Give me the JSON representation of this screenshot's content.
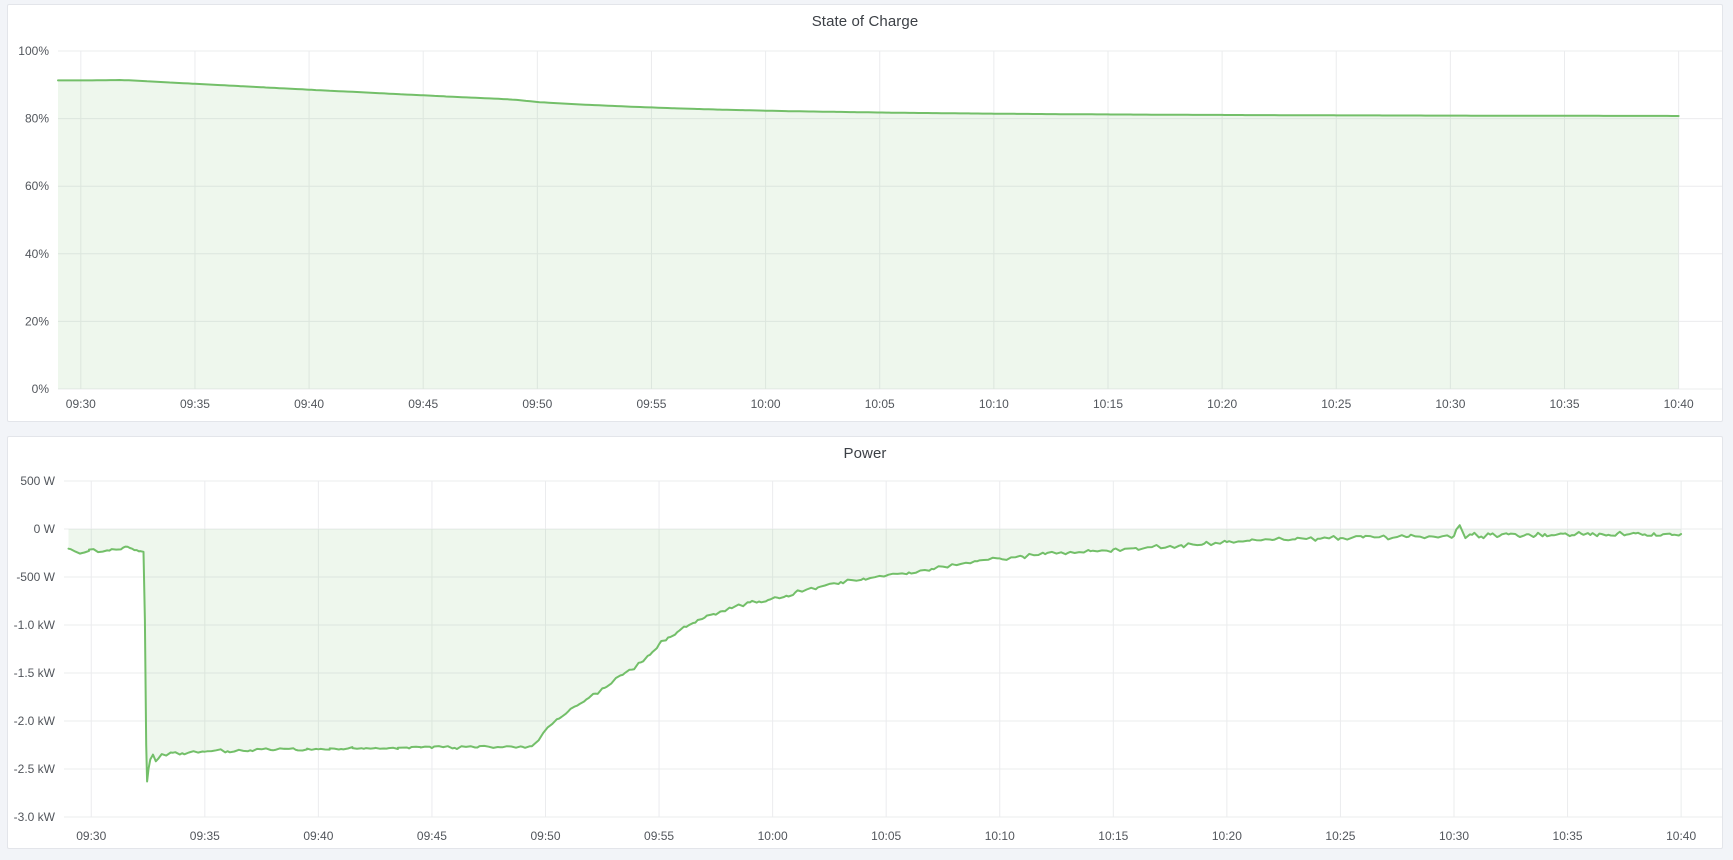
{
  "page": {
    "background": "#f2f4f8"
  },
  "panels": [
    {
      "title": "State of Charge"
    },
    {
      "title": "Power"
    }
  ],
  "chart_data": [
    {
      "type": "area",
      "title": "State of Charge",
      "xlabel": "",
      "ylabel": "",
      "legend": "none",
      "grid": true,
      "xlim_minutes": [
        -1,
        71.9
      ],
      "x_axis": {
        "tick_labels": [
          "09:30",
          "09:35",
          "09:40",
          "09:45",
          "09:50",
          "09:55",
          "10:00",
          "10:05",
          "10:10",
          "10:15",
          "10:20",
          "10:25",
          "10:30",
          "10:35",
          "10:40"
        ],
        "tick_minutes": [
          0,
          5,
          10,
          15,
          20,
          25,
          30,
          35,
          40,
          45,
          50,
          55,
          60,
          65,
          70
        ]
      },
      "y_axis": {
        "tick_labels": [
          "100%",
          "80%",
          "60%",
          "40%",
          "20%",
          "0%"
        ],
        "tick_values": [
          100,
          80,
          60,
          40,
          20,
          0
        ],
        "ylim": [
          0,
          100
        ],
        "unit": "%"
      },
      "noise_zones": [],
      "series": [
        {
          "name": "State of Charge",
          "color": "#73bf69",
          "fill": "rgba(115,191,105,0.12)",
          "points": [
            [
              -1,
              91.3
            ],
            [
              0,
              91.3
            ],
            [
              0.7,
              91.32
            ],
            [
              1.3,
              91.38
            ],
            [
              1.7,
              91.42
            ],
            [
              2,
              91.35
            ],
            [
              2.5,
              91.2
            ],
            [
              3,
              91.0
            ],
            [
              4,
              90.65
            ],
            [
              5,
              90.3
            ],
            [
              6,
              89.95
            ],
            [
              7,
              89.6
            ],
            [
              8,
              89.25
            ],
            [
              9,
              88.9
            ],
            [
              10,
              88.55
            ],
            [
              11,
              88.2
            ],
            [
              12,
              87.9
            ],
            [
              13,
              87.55
            ],
            [
              14,
              87.2
            ],
            [
              15,
              86.9
            ],
            [
              16,
              86.55
            ],
            [
              17,
              86.25
            ],
            [
              18,
              85.95
            ],
            [
              19,
              85.6
            ],
            [
              20,
              84.9
            ],
            [
              21,
              84.5
            ],
            [
              22,
              84.15
            ],
            [
              23,
              83.85
            ],
            [
              24,
              83.55
            ],
            [
              25,
              83.3
            ],
            [
              26,
              83.05
            ],
            [
              27,
              82.85
            ],
            [
              28,
              82.65
            ],
            [
              29,
              82.5
            ],
            [
              30,
              82.35
            ],
            [
              31,
              82.2
            ],
            [
              32,
              82.1
            ],
            [
              33,
              82.0
            ],
            [
              34,
              81.9
            ],
            [
              35,
              81.8
            ],
            [
              36,
              81.72
            ],
            [
              37,
              81.65
            ],
            [
              38,
              81.58
            ],
            [
              39,
              81.52
            ],
            [
              40,
              81.46
            ],
            [
              41,
              81.4
            ],
            [
              42,
              81.36
            ],
            [
              43,
              81.31
            ],
            [
              44,
              81.27
            ],
            [
              45,
              81.23
            ],
            [
              46,
              81.2
            ],
            [
              47,
              81.16
            ],
            [
              48,
              81.13
            ],
            [
              49,
              81.1
            ],
            [
              50,
              81.08
            ],
            [
              51,
              81.05
            ],
            [
              52,
              81.03
            ],
            [
              53,
              81.0
            ],
            [
              54,
              80.98
            ],
            [
              55,
              80.96
            ],
            [
              56,
              80.95
            ],
            [
              57,
              80.93
            ],
            [
              58,
              80.91
            ],
            [
              59,
              80.9
            ],
            [
              60,
              80.89
            ],
            [
              61,
              80.87
            ],
            [
              62,
              80.86
            ],
            [
              63,
              80.85
            ],
            [
              64,
              80.84
            ],
            [
              65,
              80.83
            ],
            [
              66,
              80.82
            ],
            [
              67,
              80.81
            ],
            [
              68,
              80.8
            ],
            [
              69,
              80.79
            ],
            [
              70,
              80.78
            ]
          ]
        }
      ]
    },
    {
      "type": "area",
      "title": "Power",
      "xlabel": "",
      "ylabel": "",
      "legend": "none",
      "grid": true,
      "xlim_minutes": [
        -1.2,
        71.8
      ],
      "x_axis": {
        "tick_labels": [
          "09:30",
          "09:35",
          "09:40",
          "09:45",
          "09:50",
          "09:55",
          "10:00",
          "10:05",
          "10:10",
          "10:15",
          "10:20",
          "10:25",
          "10:30",
          "10:35",
          "10:40"
        ],
        "tick_minutes": [
          0,
          5,
          10,
          15,
          20,
          25,
          30,
          35,
          40,
          45,
          50,
          55,
          60,
          65,
          70
        ]
      },
      "y_axis": {
        "tick_labels": [
          "500 W",
          "0 W",
          "-500 W",
          "-1.0 kW",
          "-1.5 kW",
          "-2.0 kW",
          "-2.5 kW",
          "-3.0 kW"
        ],
        "tick_values": [
          500,
          0,
          -500,
          -1000,
          -1500,
          -2000,
          -2500,
          -3000
        ],
        "ylim": [
          -3000,
          500
        ],
        "unit": "W"
      },
      "noise_zones": [
        {
          "from": -1.2,
          "to": 2.3,
          "amp": 13
        },
        {
          "from": 3.3,
          "to": 19.4,
          "amp": 16
        },
        {
          "from": 19.7,
          "to": 40,
          "amp": 18
        },
        {
          "from": 40,
          "to": 60,
          "amp": 24
        },
        {
          "from": 60,
          "to": 70,
          "amp": 26
        }
      ],
      "series": [
        {
          "name": "Power",
          "color": "#73bf69",
          "fill": "rgba(115,191,105,0.12)",
          "points": [
            [
              -1,
              -205
            ],
            [
              -0.7,
              -235
            ],
            [
              -0.4,
              -250
            ],
            [
              -0.1,
              -215
            ],
            [
              0.2,
              -225
            ],
            [
              0.5,
              -235
            ],
            [
              0.8,
              -225
            ],
            [
              1.1,
              -215
            ],
            [
              1.4,
              -195
            ],
            [
              1.6,
              -185
            ],
            [
              1.8,
              -205
            ],
            [
              2.0,
              -220
            ],
            [
              2.15,
              -230
            ],
            [
              2.3,
              -238
            ],
            [
              2.36,
              -950
            ],
            [
              2.42,
              -2250
            ],
            [
              2.46,
              -2630
            ],
            [
              2.52,
              -2500
            ],
            [
              2.6,
              -2400
            ],
            [
              2.72,
              -2350
            ],
            [
              2.84,
              -2420
            ],
            [
              2.96,
              -2390
            ],
            [
              3.1,
              -2345
            ],
            [
              3.3,
              -2360
            ],
            [
              3.6,
              -2330
            ],
            [
              4,
              -2335
            ],
            [
              4.5,
              -2315
            ],
            [
              5,
              -2320
            ],
            [
              5.5,
              -2305
            ],
            [
              6,
              -2315
            ],
            [
              6.5,
              -2300
            ],
            [
              7,
              -2305
            ],
            [
              7.5,
              -2295
            ],
            [
              8,
              -2305
            ],
            [
              8.5,
              -2290
            ],
            [
              9,
              -2300
            ],
            [
              9.5,
              -2288
            ],
            [
              10,
              -2295
            ],
            [
              10.5,
              -2285
            ],
            [
              11,
              -2292
            ],
            [
              11.5,
              -2282
            ],
            [
              12,
              -2290
            ],
            [
              12.5,
              -2280
            ],
            [
              13,
              -2287
            ],
            [
              13.5,
              -2278
            ],
            [
              14,
              -2285
            ],
            [
              14.5,
              -2276
            ],
            [
              15,
              -2282
            ],
            [
              15.5,
              -2272
            ],
            [
              16,
              -2280
            ],
            [
              16.5,
              -2270
            ],
            [
              17,
              -2276
            ],
            [
              17.5,
              -2268
            ],
            [
              18,
              -2274
            ],
            [
              18.5,
              -2266
            ],
            [
              19,
              -2270
            ],
            [
              19.4,
              -2262
            ],
            [
              19.7,
              -2200
            ],
            [
              20,
              -2095
            ],
            [
              20.3,
              -2030
            ],
            [
              20.6,
              -1975
            ],
            [
              21,
              -1900
            ],
            [
              21.4,
              -1840
            ],
            [
              21.8,
              -1775
            ],
            [
              22.2,
              -1715
            ],
            [
              22.6,
              -1655
            ],
            [
              23,
              -1580
            ],
            [
              23.4,
              -1520
            ],
            [
              23.8,
              -1465
            ],
            [
              24.2,
              -1390
            ],
            [
              24.6,
              -1310
            ],
            [
              25,
              -1200
            ],
            [
              25.4,
              -1130
            ],
            [
              25.8,
              -1075
            ],
            [
              26.2,
              -1020
            ],
            [
              26.6,
              -975
            ],
            [
              27,
              -925
            ],
            [
              27.4,
              -885
            ],
            [
              27.8,
              -855
            ],
            [
              28.2,
              -825
            ],
            [
              28.6,
              -795
            ],
            [
              29,
              -765
            ],
            [
              29.4,
              -755
            ],
            [
              29.8,
              -740
            ],
            [
              30.2,
              -715
            ],
            [
              30.6,
              -695
            ],
            [
              31,
              -660
            ],
            [
              31.5,
              -630
            ],
            [
              32,
              -608
            ],
            [
              32.5,
              -572
            ],
            [
              33,
              -552
            ],
            [
              33.5,
              -532
            ],
            [
              34,
              -516
            ],
            [
              34.5,
              -502
            ],
            [
              35,
              -486
            ],
            [
              35.5,
              -468
            ],
            [
              36,
              -452
            ],
            [
              36.5,
              -432
            ],
            [
              37,
              -416
            ],
            [
              37.5,
              -392
            ],
            [
              38,
              -372
            ],
            [
              38.5,
              -352
            ],
            [
              39,
              -336
            ],
            [
              39.5,
              -320
            ],
            [
              40,
              -306
            ],
            [
              40.5,
              -296
            ],
            [
              41,
              -286
            ],
            [
              41.5,
              -273
            ],
            [
              42,
              -263
            ],
            [
              42.5,
              -256
            ],
            [
              43,
              -249
            ],
            [
              43.5,
              -241
            ],
            [
              44,
              -231
            ],
            [
              44.5,
              -223
            ],
            [
              45,
              -213
            ],
            [
              45.5,
              -206
            ],
            [
              46,
              -198
            ],
            [
              46.5,
              -191
            ],
            [
              47,
              -183
            ],
            [
              47.5,
              -176
            ],
            [
              48,
              -168
            ],
            [
              48.5,
              -161
            ],
            [
              49,
              -153
            ],
            [
              49.5,
              -144
            ],
            [
              50,
              -136
            ],
            [
              50.5,
              -129
            ],
            [
              51,
              -123
            ],
            [
              51.5,
              -119
            ],
            [
              52,
              -115
            ],
            [
              52.5,
              -111
            ],
            [
              53,
              -108
            ],
            [
              53.5,
              -104
            ],
            [
              54,
              -101
            ],
            [
              54.5,
              -98
            ],
            [
              55,
              -95
            ],
            [
              55.5,
              -92
            ],
            [
              56,
              -89
            ],
            [
              56.5,
              -87
            ],
            [
              57,
              -85
            ],
            [
              57.5,
              -83
            ],
            [
              58,
              -81
            ],
            [
              58.5,
              -79
            ],
            [
              59,
              -77
            ],
            [
              59.5,
              -75
            ],
            [
              60,
              -73
            ],
            [
              60.25,
              40
            ],
            [
              60.5,
              -95
            ],
            [
              60.8,
              -60
            ],
            [
              61.2,
              -78
            ],
            [
              61.6,
              -58
            ],
            [
              62,
              -74
            ],
            [
              62.4,
              -56
            ],
            [
              62.8,
              -70
            ],
            [
              63.2,
              -54
            ],
            [
              63.6,
              -68
            ],
            [
              64,
              -52
            ],
            [
              64.4,
              -66
            ],
            [
              64.8,
              -50
            ],
            [
              65.2,
              -64
            ],
            [
              65.6,
              -49
            ],
            [
              66,
              -62
            ],
            [
              66.4,
              -48
            ],
            [
              66.8,
              -60
            ],
            [
              67.2,
              -47
            ],
            [
              67.6,
              -58
            ],
            [
              68,
              -46
            ],
            [
              68.4,
              -56
            ],
            [
              68.8,
              -44
            ],
            [
              69.2,
              -55
            ],
            [
              69.6,
              -62
            ],
            [
              70,
              -52
            ]
          ]
        }
      ]
    }
  ]
}
